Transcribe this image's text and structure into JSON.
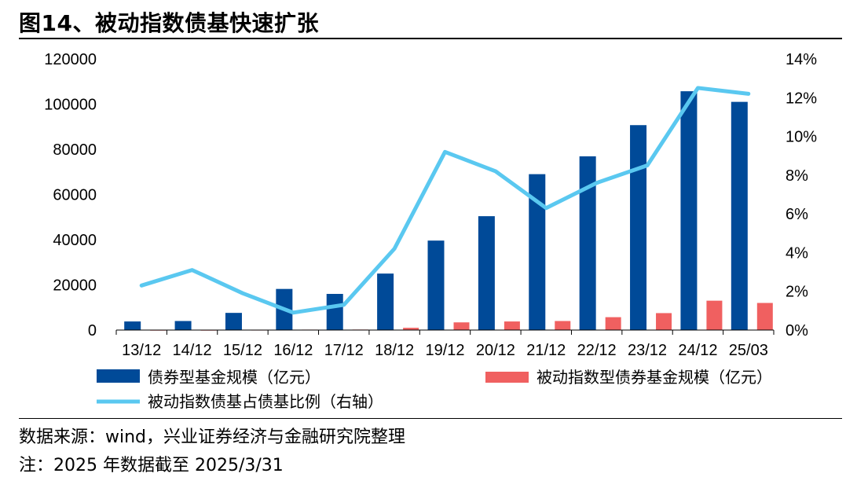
{
  "title": "图14、被动指数债基快速扩张",
  "source_text": "数据来源：wind，兴业证券经济与金融研究院整理",
  "note_text": "注：2025 年数据截至 2025/3/31",
  "colors": {
    "bond_fund": "#004a98",
    "passive_index_fund": "#f06060",
    "ratio_line": "#5ac8f0"
  },
  "chart_data": {
    "type": "bar",
    "categories": [
      "13/12",
      "14/12",
      "15/12",
      "16/12",
      "17/12",
      "18/12",
      "19/12",
      "20/12",
      "21/12",
      "22/12",
      "23/12",
      "24/12",
      "25/03"
    ],
    "left_axis": {
      "ylim": [
        0,
        120000
      ],
      "ticks": [
        "0",
        "20000",
        "40000",
        "60000",
        "80000",
        "100000",
        "120000"
      ]
    },
    "right_axis": {
      "ylim": [
        0,
        14
      ],
      "ticks": [
        "0%",
        "2%",
        "4%",
        "6%",
        "8%",
        "10%",
        "12%",
        "14%"
      ]
    },
    "series": [
      {
        "name": "债券型基金规模（亿元）",
        "type": "bar",
        "axis": "left",
        "values": [
          3800,
          4000,
          7600,
          18200,
          16000,
          25000,
          39600,
          50400,
          69000,
          76900,
          90700,
          105700,
          101000
        ]
      },
      {
        "name": "被动指数型债券基金规模（亿元）",
        "type": "bar",
        "axis": "left",
        "values": [
          100,
          100,
          150,
          200,
          220,
          1000,
          3400,
          3800,
          4000,
          5700,
          7500,
          13000,
          12000
        ]
      },
      {
        "name": "被动指数债基占债基比例（右轴）",
        "type": "line",
        "axis": "right",
        "values": [
          2.3,
          3.1,
          1.9,
          0.9,
          1.3,
          4.2,
          9.2,
          8.2,
          6.3,
          7.6,
          8.5,
          12.5,
          12.2
        ]
      }
    ],
    "legend_placement": "bottom",
    "grid": false
  }
}
